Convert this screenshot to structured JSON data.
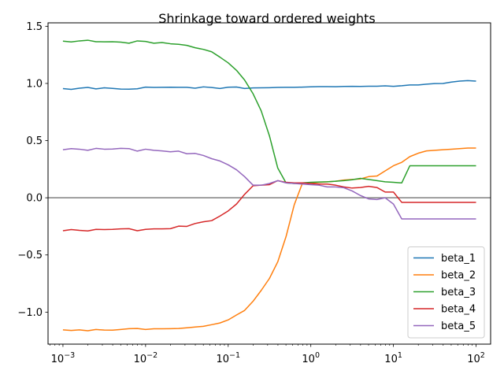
{
  "chart_data": {
    "type": "line",
    "title": "Shrinkage toward ordered weights",
    "xlabel": "",
    "ylabel": "",
    "xscale": "log",
    "xlim": [
      0.00066,
      150
    ],
    "ylim": [
      -1.28,
      1.53
    ],
    "x_ticks": [
      {
        "value": 0.001,
        "base": "10",
        "exp": "−3"
      },
      {
        "value": 0.01,
        "base": "10",
        "exp": "−2"
      },
      {
        "value": 0.1,
        "base": "10",
        "exp": "−1"
      },
      {
        "value": 1,
        "base": "10",
        "exp": "0"
      },
      {
        "value": 10,
        "base": "10",
        "exp": "1"
      },
      {
        "value": 100,
        "base": "10",
        "exp": "2"
      }
    ],
    "y_ticks": [
      {
        "value": -1.0,
        "label": "−1.0"
      },
      {
        "value": -0.5,
        "label": "−0.5"
      },
      {
        "value": 0.0,
        "label": "0.0"
      },
      {
        "value": 0.5,
        "label": "0.5"
      },
      {
        "value": 1.0,
        "label": "1.0"
      },
      {
        "value": 1.5,
        "label": "1.5"
      }
    ],
    "reference_line": {
      "y": 0,
      "color": "#808080"
    },
    "grid": false,
    "legend_position": "lower-right",
    "x": [
      0.001,
      0.00126,
      0.00158,
      0.002,
      0.00251,
      0.00316,
      0.00398,
      0.00501,
      0.00631,
      0.00794,
      0.01,
      0.0126,
      0.0158,
      0.02,
      0.0251,
      0.0316,
      0.0398,
      0.0501,
      0.0631,
      0.0794,
      0.1,
      0.126,
      0.158,
      0.2,
      0.251,
      0.316,
      0.398,
      0.501,
      0.631,
      0.794,
      1.0,
      1.26,
      1.58,
      2.0,
      2.51,
      3.16,
      3.98,
      5.01,
      6.31,
      7.94,
      10.0,
      12.6,
      15.8,
      20.0,
      25.1,
      31.6,
      39.8,
      50.1,
      63.1,
      79.4,
      100.0
    ],
    "series": [
      {
        "name": "beta_1",
        "color": "#1f77b4",
        "values": [
          0.955,
          0.948,
          0.958,
          0.965,
          0.952,
          0.962,
          0.957,
          0.951,
          0.95,
          0.953,
          0.968,
          0.965,
          0.966,
          0.967,
          0.966,
          0.966,
          0.958,
          0.97,
          0.964,
          0.956,
          0.967,
          0.969,
          0.956,
          0.961,
          0.962,
          0.963,
          0.965,
          0.966,
          0.966,
          0.968,
          0.97,
          0.972,
          0.972,
          0.971,
          0.974,
          0.975,
          0.974,
          0.976,
          0.976,
          0.979,
          0.975,
          0.98,
          0.987,
          0.987,
          0.994,
          0.999,
          1.0,
          1.012,
          1.02,
          1.025,
          1.02
        ]
      },
      {
        "name": "beta_2",
        "color": "#ff7f0e",
        "values": [
          -1.155,
          -1.16,
          -1.155,
          -1.163,
          -1.152,
          -1.157,
          -1.158,
          -1.152,
          -1.145,
          -1.143,
          -1.152,
          -1.146,
          -1.146,
          -1.145,
          -1.143,
          -1.137,
          -1.13,
          -1.124,
          -1.11,
          -1.095,
          -1.068,
          -1.025,
          -0.985,
          -0.905,
          -0.81,
          -0.705,
          -0.56,
          -0.34,
          -0.06,
          0.13,
          0.13,
          0.135,
          0.14,
          0.145,
          0.155,
          0.16,
          0.165,
          0.185,
          0.19,
          0.235,
          0.28,
          0.31,
          0.36,
          0.39,
          0.41,
          0.415,
          0.42,
          0.425,
          0.43,
          0.435,
          0.435
        ]
      },
      {
        "name": "beta_3",
        "color": "#2ca02c",
        "values": [
          1.37,
          1.363,
          1.372,
          1.378,
          1.365,
          1.364,
          1.365,
          1.361,
          1.352,
          1.372,
          1.367,
          1.352,
          1.358,
          1.347,
          1.342,
          1.333,
          1.312,
          1.298,
          1.277,
          1.23,
          1.18,
          1.115,
          1.03,
          0.91,
          0.76,
          0.54,
          0.26,
          0.13,
          0.125,
          0.13,
          0.135,
          0.138,
          0.14,
          0.145,
          0.15,
          0.158,
          0.17,
          0.16,
          0.15,
          0.14,
          0.135,
          0.13,
          0.28,
          0.28,
          0.28,
          0.28,
          0.28,
          0.28,
          0.28,
          0.28,
          0.28
        ]
      },
      {
        "name": "beta_4",
        "color": "#d62728",
        "values": [
          -0.288,
          -0.278,
          -0.285,
          -0.29,
          -0.276,
          -0.278,
          -0.276,
          -0.272,
          -0.27,
          -0.288,
          -0.276,
          -0.272,
          -0.272,
          -0.27,
          -0.248,
          -0.25,
          -0.225,
          -0.21,
          -0.2,
          -0.16,
          -0.115,
          -0.055,
          0.03,
          0.105,
          0.11,
          0.115,
          0.15,
          0.135,
          0.13,
          0.13,
          0.125,
          0.12,
          0.12,
          0.11,
          0.095,
          0.085,
          0.09,
          0.1,
          0.09,
          0.05,
          0.05,
          -0.04,
          -0.04,
          -0.04,
          -0.04,
          -0.04,
          -0.04,
          -0.04,
          -0.04,
          -0.04,
          -0.04
        ]
      },
      {
        "name": "beta_5",
        "color": "#9467bd",
        "values": [
          0.42,
          0.43,
          0.425,
          0.415,
          0.432,
          0.425,
          0.426,
          0.432,
          0.43,
          0.408,
          0.425,
          0.415,
          0.41,
          0.402,
          0.408,
          0.385,
          0.388,
          0.37,
          0.342,
          0.322,
          0.288,
          0.245,
          0.185,
          0.11,
          0.11,
          0.125,
          0.15,
          0.13,
          0.125,
          0.12,
          0.115,
          0.11,
          0.095,
          0.095,
          0.088,
          0.06,
          0.02,
          -0.01,
          -0.015,
          0.0,
          -0.055,
          -0.185,
          -0.185,
          -0.185,
          -0.185,
          -0.185,
          -0.185,
          -0.185,
          -0.185,
          -0.185,
          -0.185
        ]
      }
    ]
  }
}
